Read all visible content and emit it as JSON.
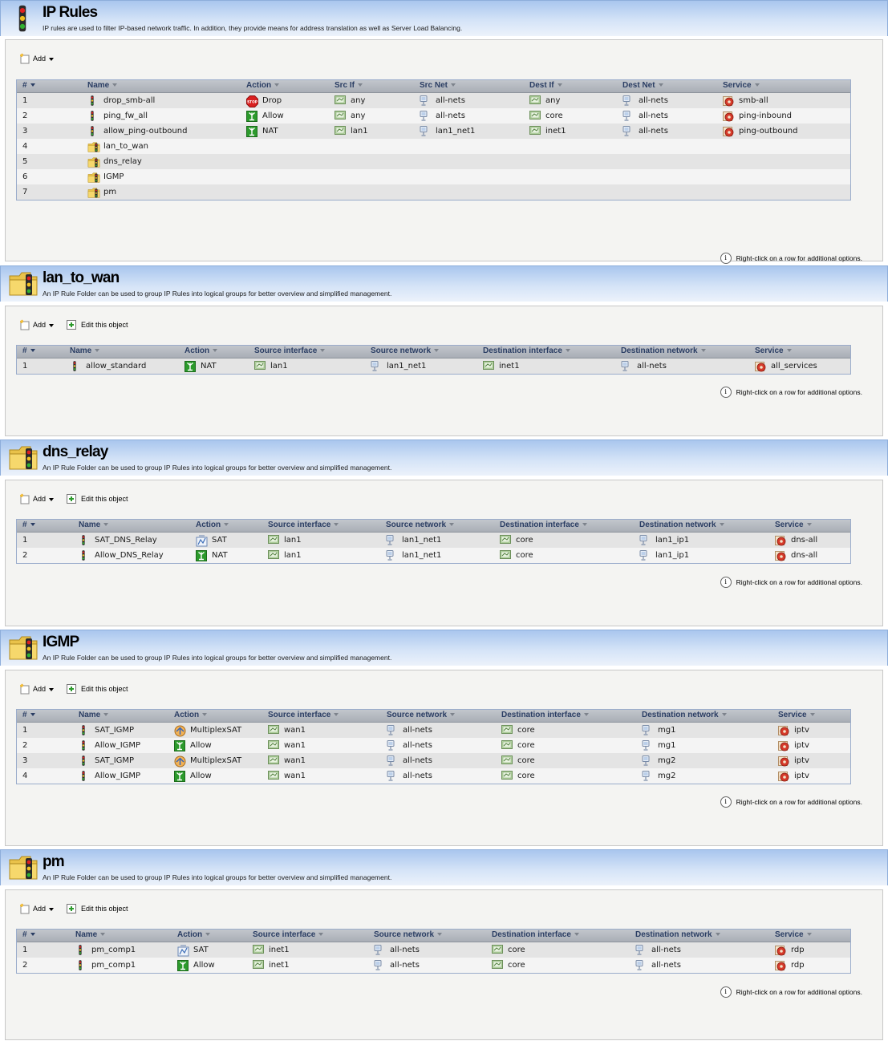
{
  "footer_hint": "Right-click on a row for additional options.",
  "add_label": "Add",
  "edit_label": "Edit this object",
  "colors": {
    "header_top": "#a9c6ee",
    "table_header_text": "#2a3d63",
    "allow_green": "#2c9a2c",
    "drop_red": "#d92020"
  },
  "panels": [
    {
      "title": "IP Rules",
      "description": "IP rules are used to filter IP-based network traffic. In addition, they provide means for address translation as well as Server Load Balancing.",
      "icon": "traffic-light-icon",
      "edit": false,
      "columns": [
        "#",
        "Name",
        "Action",
        "Src If",
        "Src Net",
        "Dest If",
        "Dest Net",
        "Service"
      ],
      "rows": [
        {
          "n": "1",
          "name": "drop_smb-all",
          "kind": "rule",
          "action": "Drop",
          "srcif": "any",
          "srcnet": "all-nets",
          "dstif": "any",
          "dstnet": "all-nets",
          "service": "smb-all"
        },
        {
          "n": "2",
          "name": "ping_fw_all",
          "kind": "rule",
          "action": "Allow",
          "srcif": "any",
          "srcnet": "all-nets",
          "dstif": "core",
          "dstnet": "all-nets",
          "service": "ping-inbound"
        },
        {
          "n": "3",
          "name": "allow_ping-outbound",
          "kind": "rule",
          "action": "NAT",
          "srcif": "lan1",
          "srcnet": "lan1_net1",
          "dstif": "inet1",
          "dstnet": "all-nets",
          "service": "ping-outbound"
        },
        {
          "n": "4",
          "name": "lan_to_wan",
          "kind": "folder"
        },
        {
          "n": "5",
          "name": "dns_relay",
          "kind": "folder"
        },
        {
          "n": "6",
          "name": "IGMP",
          "kind": "folder"
        },
        {
          "n": "7",
          "name": "pm",
          "kind": "folder"
        }
      ]
    },
    {
      "title": "lan_to_wan",
      "description": "An IP Rule Folder can be used to group IP Rules into logical groups for better overview and simplified management.",
      "icon": "folder-icon",
      "edit": true,
      "columns": [
        "#",
        "Name",
        "Action",
        "Source interface",
        "Source network",
        "Destination interface",
        "Destination network",
        "Service"
      ],
      "rows": [
        {
          "n": "1",
          "name": "allow_standard",
          "kind": "rule",
          "action": "NAT",
          "srcif": "lan1",
          "srcnet": "lan1_net1",
          "dstif": "inet1",
          "dstnet": "all-nets",
          "service": "all_services"
        }
      ]
    },
    {
      "title": "dns_relay",
      "description": "An IP Rule Folder can be used to group IP Rules into logical groups for better overview and simplified management.",
      "icon": "folder-icon",
      "edit": true,
      "columns": [
        "#",
        "Name",
        "Action",
        "Source interface",
        "Source network",
        "Destination interface",
        "Destination network",
        "Service"
      ],
      "rows": [
        {
          "n": "1",
          "name": "SAT_DNS_Relay",
          "kind": "rule",
          "action": "SAT",
          "srcif": "lan1",
          "srcnet": "lan1_net1",
          "dstif": "core",
          "dstnet": "lan1_ip1",
          "service": "dns-all"
        },
        {
          "n": "2",
          "name": "Allow_DNS_Relay",
          "kind": "rule",
          "action": "NAT",
          "srcif": "lan1",
          "srcnet": "lan1_net1",
          "dstif": "core",
          "dstnet": "lan1_ip1",
          "service": "dns-all"
        }
      ]
    },
    {
      "title": "IGMP",
      "description": "An IP Rule Folder can be used to group IP Rules into logical groups for better overview and simplified management.",
      "icon": "folder-icon",
      "edit": true,
      "columns": [
        "#",
        "Name",
        "Action",
        "Source interface",
        "Source network",
        "Destination interface",
        "Destination network",
        "Service"
      ],
      "rows": [
        {
          "n": "1",
          "name": "SAT_IGMP",
          "kind": "rule",
          "action": "MultiplexSAT",
          "srcif": "wan1",
          "srcnet": "all-nets",
          "dstif": "core",
          "dstnet": "mg1",
          "service": "iptv"
        },
        {
          "n": "2",
          "name": "Allow_IGMP",
          "kind": "rule",
          "action": "Allow",
          "srcif": "wan1",
          "srcnet": "all-nets",
          "dstif": "core",
          "dstnet": "mg1",
          "service": "iptv"
        },
        {
          "n": "3",
          "name": "SAT_IGMP",
          "kind": "rule",
          "action": "MultiplexSAT",
          "srcif": "wan1",
          "srcnet": "all-nets",
          "dstif": "core",
          "dstnet": "mg2",
          "service": "iptv"
        },
        {
          "n": "4",
          "name": "Allow_IGMP",
          "kind": "rule",
          "action": "Allow",
          "srcif": "wan1",
          "srcnet": "all-nets",
          "dstif": "core",
          "dstnet": "mg2",
          "service": "iptv"
        }
      ]
    },
    {
      "title": "pm",
      "description": "An IP Rule Folder can be used to group IP Rules into logical groups for better overview and simplified management.",
      "icon": "folder-icon",
      "edit": true,
      "columns": [
        "#",
        "Name",
        "Action",
        "Source interface",
        "Source network",
        "Destination interface",
        "Destination network",
        "Service"
      ],
      "rows": [
        {
          "n": "1",
          "name": "pm_comp1",
          "kind": "rule",
          "action": "SAT",
          "srcif": "inet1",
          "srcnet": "all-nets",
          "dstif": "core",
          "dstnet": "all-nets",
          "service": "rdp"
        },
        {
          "n": "2",
          "name": "pm_comp1",
          "kind": "rule",
          "action": "Allow",
          "srcif": "inet1",
          "srcnet": "all-nets",
          "dstif": "core",
          "dstnet": "all-nets",
          "service": "rdp"
        }
      ]
    }
  ]
}
